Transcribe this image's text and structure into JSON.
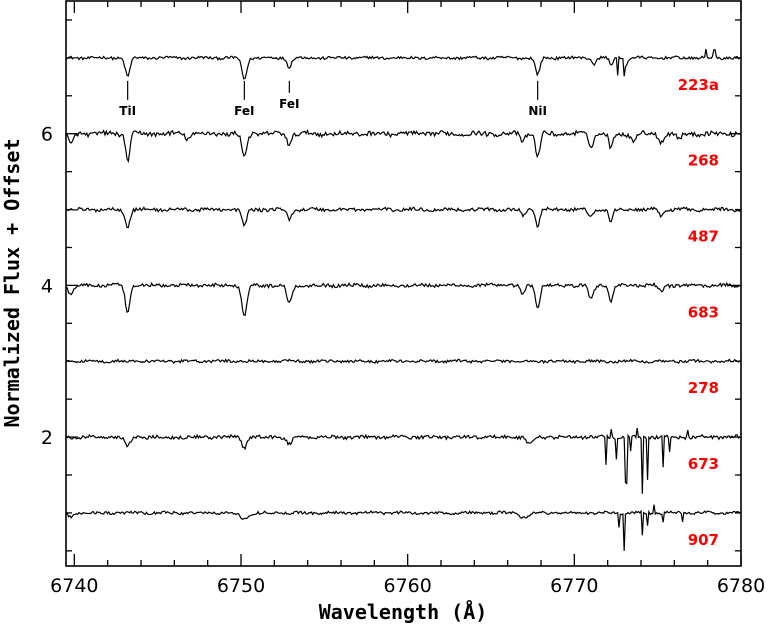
{
  "chart_data": {
    "type": "line",
    "title": "",
    "xlabel": "Wavelength (Å)",
    "ylabel": "Normalized Flux + Offset",
    "xlim": [
      6739.5,
      6780
    ],
    "ylim": [
      0.3,
      7.75
    ],
    "x_ticks": [
      6740,
      6750,
      6760,
      6770,
      6780
    ],
    "y_ticks": [
      2,
      4,
      6
    ],
    "label_color": "#ff0000",
    "line_color": "#000000",
    "line_marks": [
      {
        "label": "TiI",
        "x": 6743.2
      },
      {
        "label": "FeI",
        "x": 6750.2
      },
      {
        "label": "FeI",
        "x": 6752.9
      },
      {
        "label": "NiI",
        "x": 6767.8
      }
    ],
    "series": [
      {
        "name": "223a",
        "offset": 7.0,
        "noise": 0.018,
        "lines": [
          [
            6743.2,
            0.25,
            0.28
          ],
          [
            6750.2,
            0.28,
            0.3
          ],
          [
            6752.9,
            0.12,
            0.25
          ],
          [
            6767.8,
            0.22,
            0.28
          ],
          [
            6771.2,
            0.08,
            0.25
          ],
          [
            6772.2,
            0.1,
            0.2
          ],
          [
            6773.1,
            0.1,
            0.2
          ]
        ],
        "spikes": [
          [
            6772.6,
            -0.22
          ],
          [
            6773.0,
            -0.18
          ],
          [
            6777.9,
            0.12
          ],
          [
            6778.4,
            0.1
          ]
        ]
      },
      {
        "name": "268",
        "offset": 6.0,
        "noise": 0.03,
        "lines": [
          [
            6739.8,
            0.15,
            0.3
          ],
          [
            6743.2,
            0.35,
            0.25
          ],
          [
            6746.8,
            0.06,
            0.3
          ],
          [
            6750.2,
            0.3,
            0.3
          ],
          [
            6752.9,
            0.15,
            0.25
          ],
          [
            6766.9,
            0.1,
            0.25
          ],
          [
            6767.8,
            0.32,
            0.25
          ],
          [
            6771.0,
            0.15,
            0.3
          ],
          [
            6772.2,
            0.2,
            0.25
          ],
          [
            6773.5,
            0.08,
            0.3
          ],
          [
            6775.2,
            0.1,
            0.3
          ],
          [
            6776.3,
            0.07,
            0.3
          ]
        ],
        "spikes": []
      },
      {
        "name": "487",
        "offset": 5.0,
        "noise": 0.022,
        "lines": [
          [
            6743.2,
            0.22,
            0.28
          ],
          [
            6750.2,
            0.22,
            0.28
          ],
          [
            6752.9,
            0.14,
            0.25
          ],
          [
            6766.9,
            0.08,
            0.25
          ],
          [
            6767.8,
            0.22,
            0.25
          ],
          [
            6771.0,
            0.1,
            0.3
          ],
          [
            6772.2,
            0.16,
            0.25
          ],
          [
            6775.2,
            0.08,
            0.3
          ]
        ],
        "spikes": []
      },
      {
        "name": "683",
        "offset": 4.0,
        "noise": 0.022,
        "lines": [
          [
            6739.8,
            0.12,
            0.3
          ],
          [
            6743.2,
            0.36,
            0.28
          ],
          [
            6750.2,
            0.4,
            0.3
          ],
          [
            6752.9,
            0.24,
            0.3
          ],
          [
            6766.9,
            0.14,
            0.25
          ],
          [
            6767.8,
            0.3,
            0.25
          ],
          [
            6771.0,
            0.18,
            0.3
          ],
          [
            6772.2,
            0.2,
            0.25
          ],
          [
            6775.2,
            0.08,
            0.3
          ]
        ],
        "spikes": []
      },
      {
        "name": "278",
        "offset": 3.0,
        "noise": 0.018,
        "lines": [],
        "spikes": []
      },
      {
        "name": "673",
        "offset": 2.0,
        "noise": 0.022,
        "lines": [
          [
            6743.2,
            0.13,
            0.3
          ],
          [
            6750.2,
            0.14,
            0.3
          ],
          [
            6752.9,
            0.1,
            0.3
          ],
          [
            6767.3,
            0.1,
            0.35
          ]
        ],
        "spikes": [
          [
            6771.9,
            -0.35
          ],
          [
            6772.5,
            -0.3
          ],
          [
            6773.1,
            -0.6
          ],
          [
            6773.4,
            -0.2
          ],
          [
            6774.1,
            -0.75
          ],
          [
            6774.4,
            -0.55
          ],
          [
            6775.3,
            -0.4
          ],
          [
            6775.7,
            -0.2
          ],
          [
            6772.2,
            0.12
          ],
          [
            6773.8,
            0.12
          ],
          [
            6776.8,
            0.1
          ]
        ]
      },
      {
        "name": "907",
        "offset": 1.0,
        "noise": 0.018,
        "lines": [
          [
            6739.8,
            0.05,
            0.4
          ],
          [
            6750.2,
            0.08,
            0.5
          ],
          [
            6767.0,
            0.06,
            0.5
          ]
        ],
        "spikes": [
          [
            6772.7,
            -0.2
          ],
          [
            6773.0,
            -0.5
          ],
          [
            6774.1,
            -0.3
          ],
          [
            6774.4,
            -0.15
          ],
          [
            6775.3,
            -0.12
          ],
          [
            6776.5,
            -0.1
          ],
          [
            6774.8,
            0.12
          ]
        ]
      }
    ]
  }
}
